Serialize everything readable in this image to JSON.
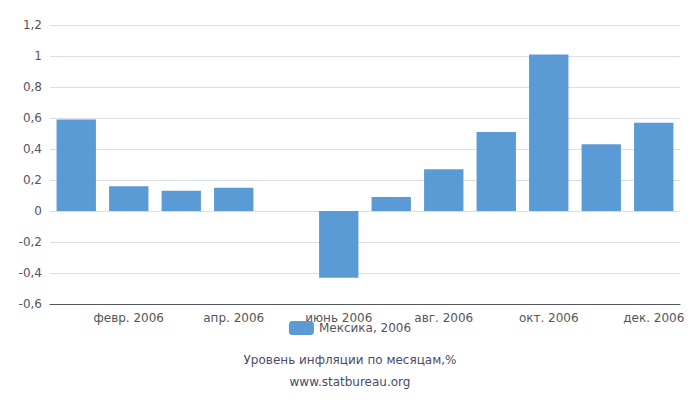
{
  "chart_data": {
    "type": "bar",
    "subtitle": "Уровень инфляции по месяцам,%",
    "annotations": [
      "www.statbureau.org"
    ],
    "categories": [
      null,
      "февр. 2006",
      null,
      "апр. 2006",
      null,
      "июнь 2006",
      null,
      "авг. 2006",
      null,
      "окт. 2006",
      null,
      "дек. 2006"
    ],
    "series": [
      {
        "name": "Мексика, 2006",
        "color": "#5B9BD5",
        "values": [
          0.59,
          0.16,
          0.13,
          0.15,
          0.0,
          -0.43,
          0.09,
          0.27,
          0.51,
          1.01,
          0.43,
          0.57
        ]
      }
    ],
    "ylim": [
      -0.6,
      1.2
    ],
    "yticks": [
      {
        "value": -0.6,
        "label": "-0,6"
      },
      {
        "value": -0.4,
        "label": "-0,4"
      },
      {
        "value": -0.2,
        "label": "-0,2"
      },
      0,
      {
        "value": 0.2,
        "label": "0,2"
      },
      {
        "value": 0.4,
        "label": "0,4"
      },
      {
        "value": 0.6,
        "label": "0,6"
      },
      {
        "value": 0.8,
        "label": "0,8"
      },
      1,
      {
        "value": 1.2,
        "label": "1,2"
      }
    ],
    "grid": true,
    "legend": "bottom"
  }
}
